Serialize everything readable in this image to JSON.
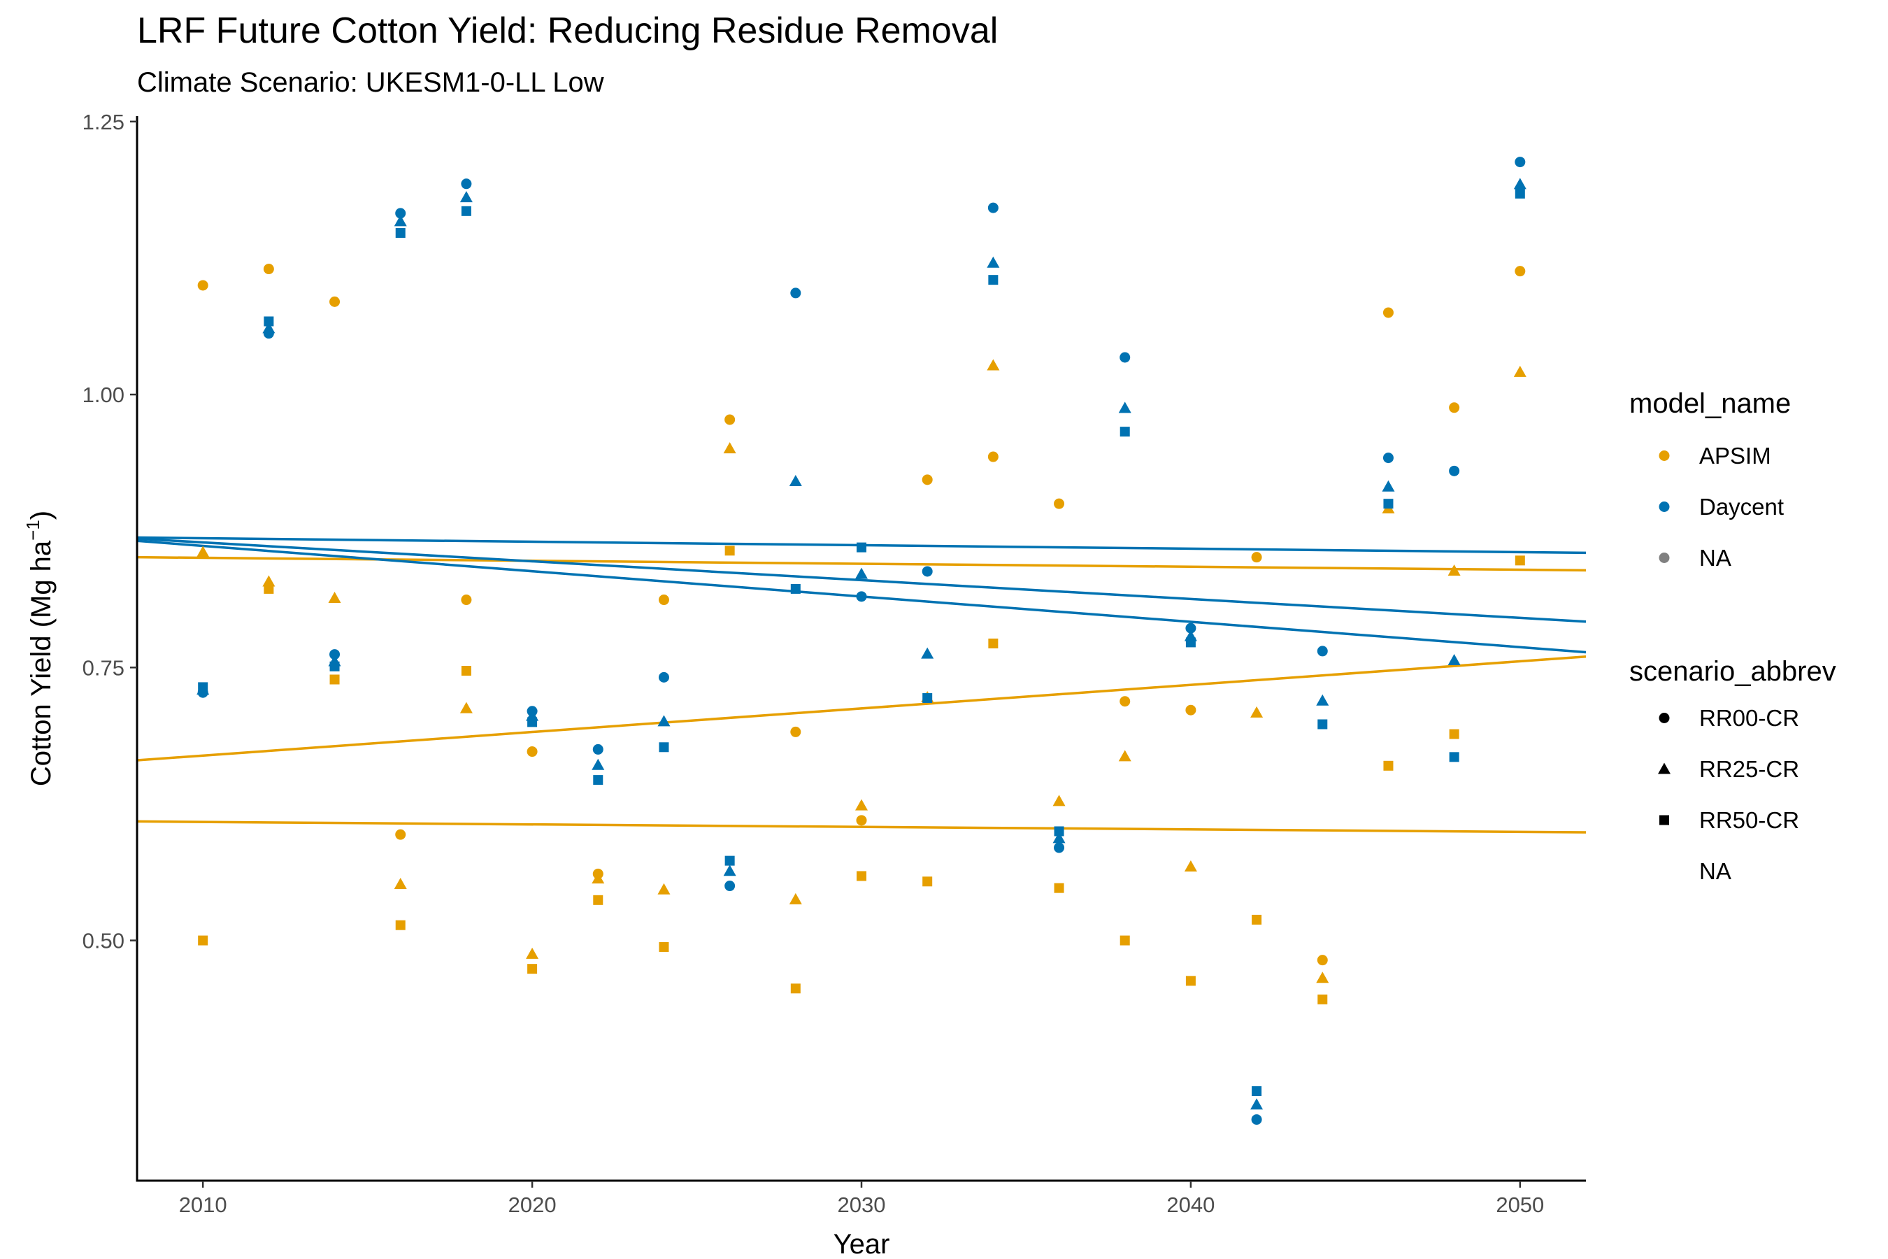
{
  "title": "LRF Future Cotton Yield: Reducing Residue Removal",
  "subtitle": "Climate Scenario: UKESM1-0-LL Low",
  "chart_data": {
    "type": "scatter",
    "title": "LRF Future Cotton Yield: Reducing Residue Removal",
    "subtitle": "Climate Scenario: UKESM1-0-LL Low",
    "xlabel": "Year",
    "ylabel": "Cotton Yield (Mg ha",
    "ylabel_sup": "−1",
    "ylabel_end": ")",
    "xlim": [
      2008,
      2052
    ],
    "ylim": [
      0.28,
      1.255
    ],
    "xticks": [
      2010,
      2020,
      2030,
      2040,
      2050
    ],
    "yticks": [
      0.5,
      0.75,
      1.0,
      1.25
    ],
    "ytick_labels": [
      "0.50",
      "0.75",
      "1.00",
      "1.25"
    ],
    "grid": false,
    "legend_placement": "right",
    "years": [
      2010,
      2012,
      2014,
      2016,
      2018,
      2020,
      2022,
      2024,
      2026,
      2028,
      2030,
      2032,
      2034,
      2036,
      2038,
      2040,
      2042,
      2044,
      2046,
      2048,
      2050
    ],
    "colors": {
      "APSIM": "#E69F00",
      "Daycent": "#0072B2",
      "NA": "#808080"
    },
    "shapes": {
      "RR00-CR": "circle",
      "RR25-CR": "triangle",
      "RR50-CR": "square"
    },
    "series": [
      {
        "model": "APSIM",
        "scenario": "RR00-CR",
        "values": [
          1.1,
          1.115,
          1.085,
          0.597,
          0.812,
          0.673,
          0.561,
          0.812,
          0.977,
          0.691,
          0.61,
          0.922,
          0.943,
          0.9,
          0.719,
          0.711,
          0.851,
          0.482,
          1.075,
          0.988,
          1.113
        ]
      },
      {
        "model": "APSIM",
        "scenario": "RR25-CR",
        "values": [
          0.855,
          0.828,
          0.813,
          0.551,
          0.712,
          0.487,
          0.556,
          0.546,
          0.95,
          0.537,
          0.623,
          0.722,
          1.026,
          0.627,
          0.668,
          0.567,
          0.708,
          0.465,
          0.895,
          0.838,
          1.02
        ]
      },
      {
        "model": "APSIM",
        "scenario": "RR50-CR",
        "values": [
          0.5,
          0.822,
          0.739,
          0.514,
          0.747,
          0.474,
          0.537,
          0.494,
          0.857,
          0.456,
          0.559,
          0.554,
          0.772,
          0.548,
          0.5,
          0.463,
          0.519,
          0.446,
          0.66,
          0.689,
          0.848
        ]
      },
      {
        "model": "Daycent",
        "scenario": "RR00-CR",
        "values": [
          0.727,
          1.056,
          0.762,
          1.166,
          1.193,
          0.71,
          0.675,
          0.741,
          0.55,
          1.093,
          0.815,
          0.838,
          1.171,
          0.585,
          1.034,
          0.786,
          0.336,
          0.765,
          0.942,
          0.93,
          1.213
        ]
      },
      {
        "model": "Daycent",
        "scenario": "RR25-CR",
        "values": [
          0.729,
          1.06,
          0.755,
          1.158,
          1.18,
          0.705,
          0.66,
          0.7,
          0.563,
          0.92,
          0.835,
          0.762,
          1.12,
          0.593,
          0.987,
          0.778,
          0.349,
          0.719,
          0.915,
          0.756,
          1.192
        ]
      },
      {
        "model": "Daycent",
        "scenario": "RR50-CR",
        "values": [
          0.732,
          1.067,
          0.751,
          1.148,
          1.168,
          0.7,
          0.647,
          0.677,
          0.573,
          0.822,
          0.86,
          0.722,
          1.105,
          0.6,
          0.966,
          0.773,
          0.362,
          0.698,
          0.9,
          0.668,
          1.184
        ]
      }
    ],
    "trend_lines": [
      {
        "model": "APSIM",
        "scenario": "RR00-CR",
        "x": [
          2008,
          2052
        ],
        "y": [
          0.851,
          0.839
        ]
      },
      {
        "model": "APSIM",
        "scenario": "RR25-CR",
        "x": [
          2008,
          2052
        ],
        "y": [
          0.665,
          0.76
        ]
      },
      {
        "model": "APSIM",
        "scenario": "RR50-CR",
        "x": [
          2008,
          2052
        ],
        "y": [
          0.609,
          0.599
        ]
      },
      {
        "model": "Daycent",
        "scenario": "RR00-CR",
        "x": [
          2008,
          2052
        ],
        "y": [
          0.869,
          0.855
        ]
      },
      {
        "model": "Daycent",
        "scenario": "RR25-CR",
        "x": [
          2008,
          2052
        ],
        "y": [
          0.868,
          0.792
        ]
      },
      {
        "model": "Daycent",
        "scenario": "RR50-CR",
        "x": [
          2008,
          2052
        ],
        "y": [
          0.866,
          0.764
        ]
      }
    ]
  },
  "legend": {
    "model_title": "model_name",
    "model_items": [
      {
        "label": "APSIM",
        "color": "#E69F00"
      },
      {
        "label": "Daycent",
        "color": "#0072B2"
      },
      {
        "label": "NA",
        "color": "#808080"
      }
    ],
    "scenario_title": "scenario_abbrev",
    "scenario_items": [
      {
        "label": "RR00-CR",
        "shape": "circle"
      },
      {
        "label": "RR25-CR",
        "shape": "triangle"
      },
      {
        "label": "RR50-CR",
        "shape": "square"
      },
      {
        "label": "NA",
        "shape": "none"
      }
    ]
  }
}
